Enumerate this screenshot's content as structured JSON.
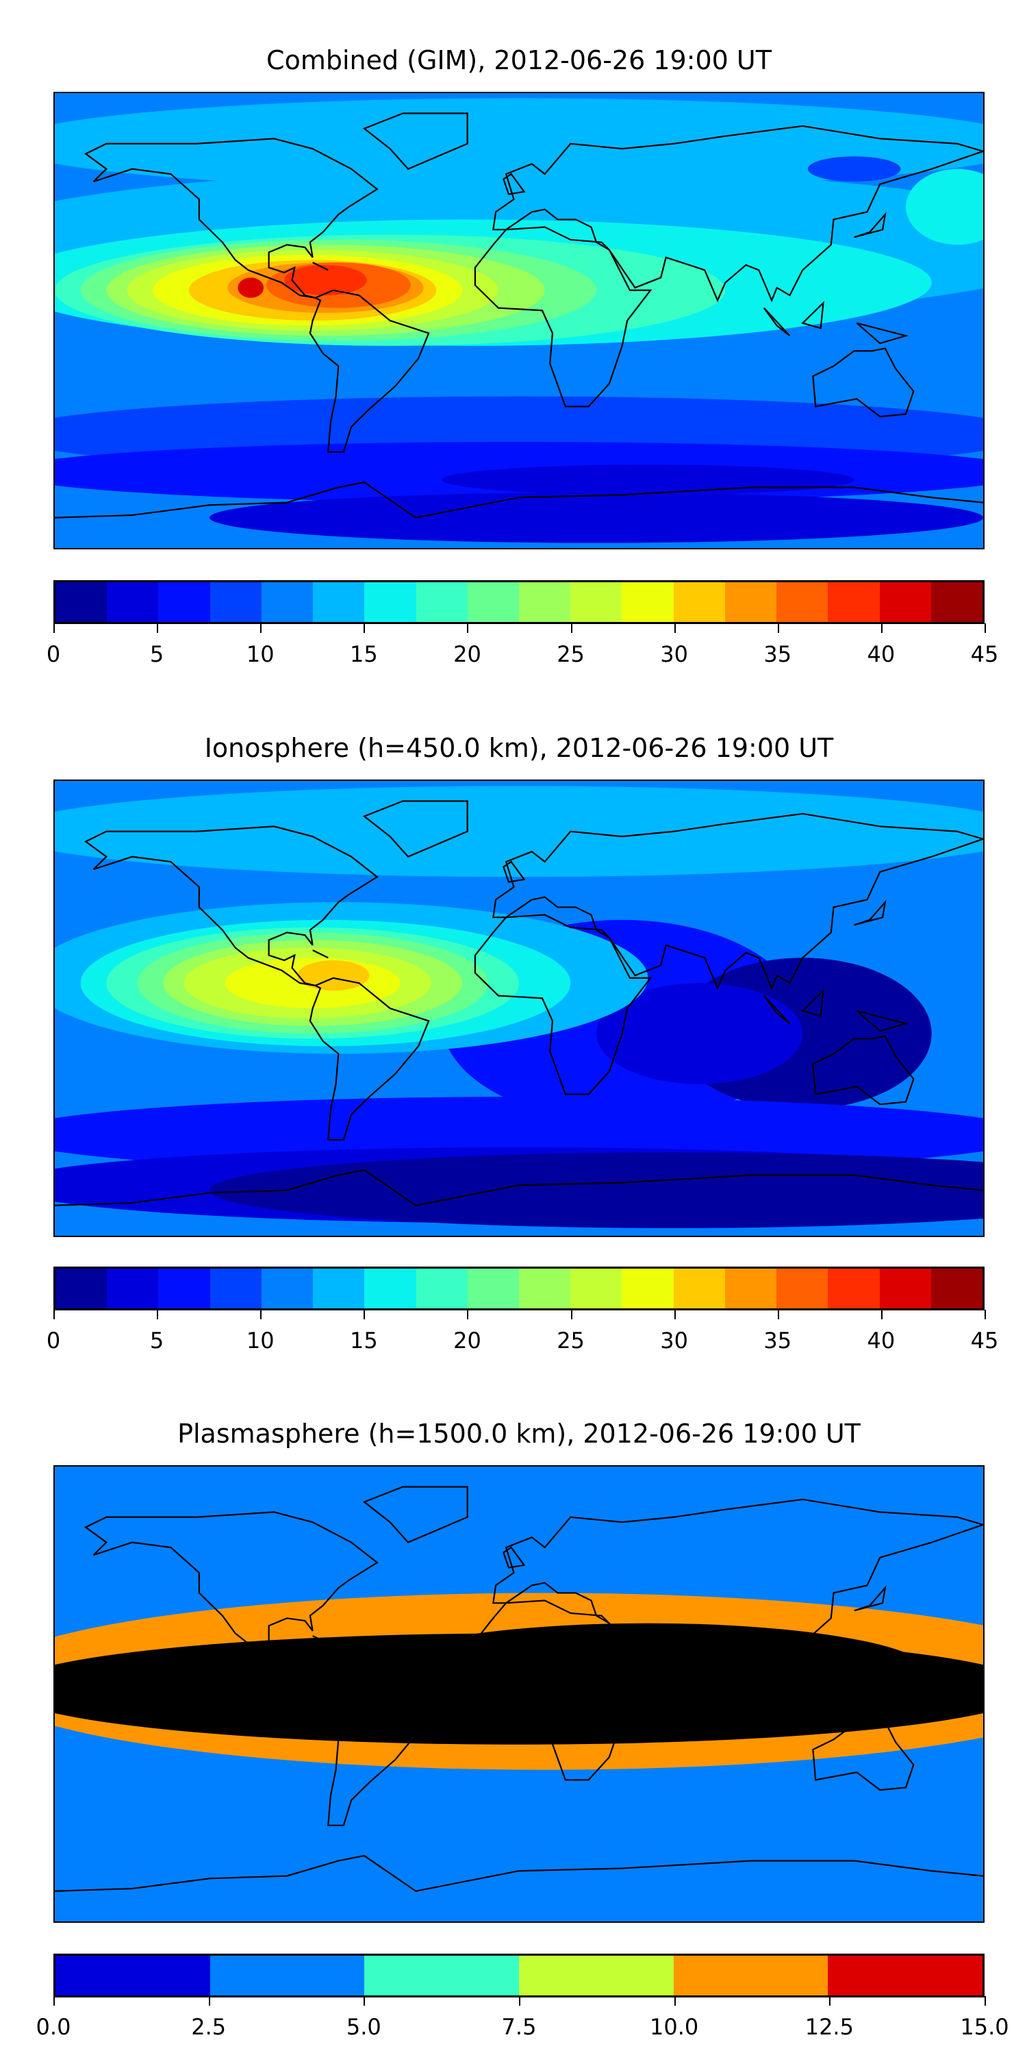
{
  "chart_data": [
    {
      "type": "heatmap",
      "title": "Combined (GIM), 2012-06-26 19:00 UT",
      "levels": [
        0,
        2.5,
        5,
        7.5,
        10,
        12.5,
        15,
        17.5,
        20,
        22.5,
        25,
        27.5,
        30,
        32.5,
        35,
        37.5,
        40,
        42.5,
        45
      ],
      "colors": [
        "#00009c",
        "#0000dd",
        "#0010ff",
        "#0040ff",
        "#0080ff",
        "#00b8ff",
        "#0af2ee",
        "#3affc4",
        "#66ff90",
        "#9cff5a",
        "#c4ff33",
        "#eeff0a",
        "#ffca00",
        "#ff9600",
        "#ff6000",
        "#ff2d00",
        "#dd0000",
        "#9c0000"
      ],
      "colorbar_ticks": [
        "0",
        "5",
        "10",
        "15",
        "20",
        "25",
        "30",
        "35",
        "40",
        "45"
      ],
      "range": [
        0,
        45
      ],
      "hotspot": "tropical South America / Atlantic, peak ~40-42.5"
    },
    {
      "type": "heatmap",
      "title": "Ionosphere  (h=450.0 km), 2012-06-26 19:00 UT",
      "levels": [
        0,
        2.5,
        5,
        7.5,
        10,
        12.5,
        15,
        17.5,
        20,
        22.5,
        25,
        27.5,
        30,
        32.5,
        35,
        37.5,
        40,
        42.5,
        45
      ],
      "colors": [
        "#00009c",
        "#0000dd",
        "#0010ff",
        "#0040ff",
        "#0080ff",
        "#00b8ff",
        "#0af2ee",
        "#3affc4",
        "#66ff90",
        "#9cff5a",
        "#c4ff33",
        "#eeff0a",
        "#ffca00",
        "#ff9600",
        "#ff6000",
        "#ff2d00",
        "#dd0000",
        "#9c0000"
      ],
      "colorbar_ticks": [
        "0",
        "5",
        "10",
        "15",
        "20",
        "25",
        "30",
        "35",
        "40",
        "45"
      ],
      "range": [
        0,
        45
      ]
    },
    {
      "type": "heatmap",
      "title": "Plasmasphere (h=1500.0 km), 2012-06-26 19:00 UT",
      "levels": [
        0,
        2.5,
        5,
        7.5,
        10,
        12.5,
        15
      ],
      "colors": [
        "#0000dd",
        "#0080ff",
        "#3affc4",
        "#c4ff33",
        "#ff9600",
        "#dd0000"
      ],
      "colorbar_ticks": [
        "0.0",
        "2.5",
        "5.0",
        "7.5",
        "10.0",
        "12.5",
        "15.0"
      ],
      "range": [
        0,
        15
      ]
    }
  ]
}
